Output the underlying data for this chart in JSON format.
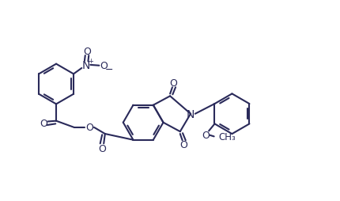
{
  "bg": "#ffffff",
  "lc": "#2a2a5a",
  "lw": 1.5,
  "fs": 9.0,
  "xlim": [
    0.0,
    10.5
  ],
  "ylim": [
    0.5,
    6.0
  ]
}
